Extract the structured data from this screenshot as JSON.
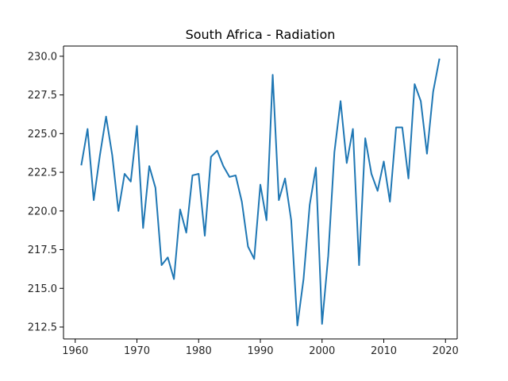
{
  "chart_data": {
    "type": "line",
    "title": "South Africa - Radiation",
    "xlabel": "",
    "ylabel": "",
    "xlim": [
      1958.1,
      2021.9
    ],
    "ylim": [
      211.73,
      230.66
    ],
    "grid": false,
    "legend": "none",
    "x_ticks": [
      1960,
      1970,
      1980,
      1990,
      2000,
      2010,
      2020
    ],
    "x_tick_labels": [
      "1960",
      "1970",
      "1980",
      "1990",
      "2000",
      "2010",
      "2020"
    ],
    "y_ticks": [
      212.5,
      215.0,
      217.5,
      220.0,
      222.5,
      225.0,
      227.5,
      230.0
    ],
    "y_tick_labels": [
      "212.5",
      "215.0",
      "217.5",
      "220.0",
      "222.5",
      "225.0",
      "227.5",
      "230.0"
    ],
    "series": [
      {
        "name": "",
        "color": "#1f77b4",
        "x": [
          1961,
          1962,
          1963,
          1964,
          1965,
          1966,
          1967,
          1968,
          1969,
          1970,
          1971,
          1972,
          1973,
          1974,
          1975,
          1976,
          1977,
          1978,
          1979,
          1980,
          1981,
          1982,
          1983,
          1984,
          1985,
          1986,
          1987,
          1988,
          1989,
          1990,
          1991,
          1992,
          1993,
          1994,
          1995,
          1996,
          1997,
          1998,
          1999,
          2000,
          2001,
          2002,
          2003,
          2004,
          2005,
          2006,
          2007,
          2008,
          2009,
          2010,
          2011,
          2012,
          2013,
          2014,
          2015,
          2016,
          2017,
          2018,
          2019
        ],
        "values": [
          223.0,
          225.3,
          220.7,
          223.6,
          226.1,
          223.6,
          220.0,
          222.4,
          221.9,
          225.5,
          218.9,
          222.9,
          221.5,
          216.5,
          217.0,
          215.6,
          220.1,
          218.6,
          222.3,
          222.4,
          218.4,
          223.5,
          223.9,
          222.9,
          222.2,
          222.3,
          220.6,
          217.7,
          216.9,
          221.7,
          219.4,
          228.8,
          220.7,
          222.1,
          219.4,
          212.6,
          215.6,
          220.4,
          222.8,
          212.7,
          217.1,
          223.8,
          227.1,
          223.1,
          225.3,
          216.5,
          224.7,
          222.4,
          221.3,
          223.2,
          220.6,
          225.4,
          225.4,
          222.1,
          228.2,
          227.1,
          223.7,
          227.7,
          229.8
        ]
      }
    ]
  }
}
